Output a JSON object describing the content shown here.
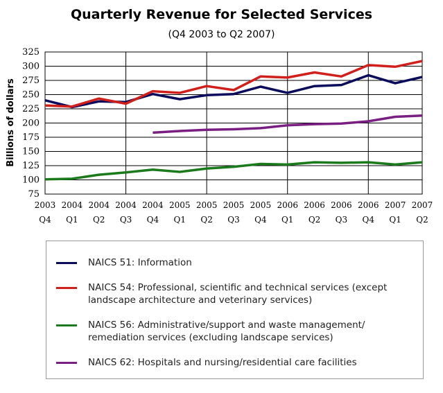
{
  "chart_data": {
    "type": "line",
    "title": "Quarterly Revenue for Selected Services",
    "subtitle": "(Q4 2003 to Q2 2007)",
    "xlabel": "",
    "ylabel": "Billions of dollars",
    "ylim": [
      75,
      325
    ],
    "yticks": [
      75,
      100,
      125,
      150,
      175,
      200,
      225,
      250,
      275,
      300,
      325
    ],
    "grid": {
      "horizontal": true,
      "vertical": true
    },
    "legend_position": "bottom",
    "categories": [
      {
        "year": "2003",
        "quarter": "Q4"
      },
      {
        "year": "2004",
        "quarter": "Q1"
      },
      {
        "year": "2004",
        "quarter": "Q2"
      },
      {
        "year": "2004",
        "quarter": "Q3"
      },
      {
        "year": "2004",
        "quarter": "Q4"
      },
      {
        "year": "2005",
        "quarter": "Q1"
      },
      {
        "year": "2005",
        "quarter": "Q2"
      },
      {
        "year": "2005",
        "quarter": "Q3"
      },
      {
        "year": "2005",
        "quarter": "Q4"
      },
      {
        "year": "2006",
        "quarter": "Q1"
      },
      {
        "year": "2006",
        "quarter": "Q2"
      },
      {
        "year": "2006",
        "quarter": "Q3"
      },
      {
        "year": "2006",
        "quarter": "Q4"
      },
      {
        "year": "2007",
        "quarter": "Q1"
      },
      {
        "year": "2007",
        "quarter": "Q2"
      }
    ],
    "series": [
      {
        "name": "NAICS 51: Information",
        "color": "#0b0b5c",
        "values": [
          240,
          228,
          238,
          237,
          251,
          242,
          249,
          251,
          264,
          253,
          265,
          267,
          284,
          270,
          281
        ]
      },
      {
        "name": "NAICS 54: Professional, scientific and technical services (except landscape architecture and veterinary services)",
        "color": "#d0201c",
        "values": [
          231,
          229,
          243,
          234,
          256,
          253,
          265,
          258,
          282,
          280,
          289,
          282,
          302,
          299,
          309
        ]
      },
      {
        "name": "NAICS 56: Administrative/support and waste management/ remediation services (excluding landscape services)",
        "color": "#1b7a1b",
        "values": [
          101,
          102,
          109,
          113,
          118,
          114,
          120,
          123,
          128,
          127,
          131,
          130,
          131,
          127,
          131
        ]
      },
      {
        "name": "NAICS 62: Hospitals and nursing/residential care facilities",
        "color": "#7a1f82",
        "values": [
          null,
          null,
          null,
          null,
          183,
          186,
          188,
          189,
          191,
          196,
          198,
          199,
          203,
          211,
          213
        ]
      }
    ]
  },
  "legend": {
    "items": [
      {
        "lines": [
          "NAICS 51: Information"
        ]
      },
      {
        "lines": [
          "NAICS 54: Professional, scientific and technical services (except",
          "landscape architecture and veterinary services)"
        ]
      },
      {
        "lines": [
          "NAICS 56: Administrative/support and waste management/",
          "remediation services (excluding landscape services)"
        ]
      },
      {
        "lines": [
          "NAICS 62: Hospitals and nursing/residential care facilities"
        ]
      }
    ]
  }
}
